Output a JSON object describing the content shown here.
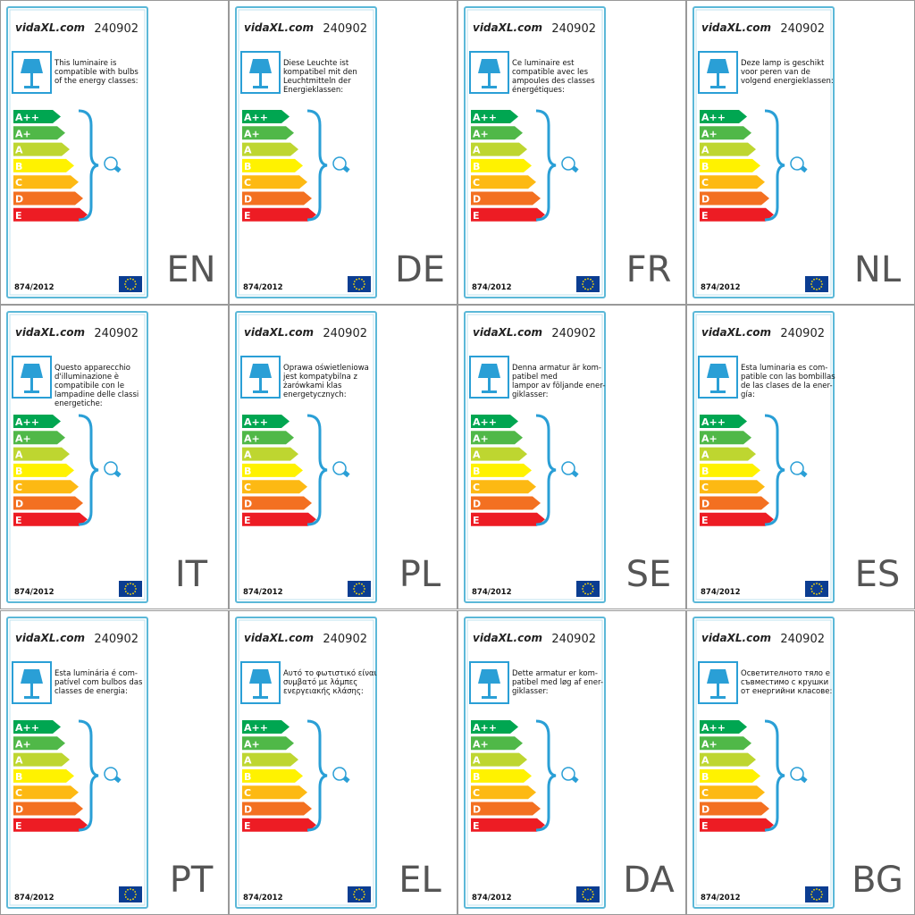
{
  "brand": "vidaXL.com",
  "product_code": "240902",
  "regulation": "874/2012",
  "energy_classes": [
    "A++",
    "A+",
    "A",
    "B",
    "C",
    "D",
    "E"
  ],
  "panels": [
    {
      "language": "EN",
      "text_lines": [
        "This luminaire is",
        "compatible with bulbs",
        "of the energy classes:"
      ]
    },
    {
      "language": "DE",
      "text_lines": [
        "Diese Leuchte ist",
        "kompatibel mit den",
        "Leuchtmitteln der",
        "Energieklassen:"
      ]
    },
    {
      "language": "FR",
      "text_lines": [
        "Ce luminaire est",
        "compatible avec les",
        "ampoules des classes",
        "énergétiques:"
      ]
    },
    {
      "language": "NL",
      "text_lines": [
        "Deze lamp is geschikt",
        "voor peren van de",
        "volgend energieklassen:"
      ]
    },
    {
      "language": "IT",
      "text_lines": [
        "Questo apparecchio",
        "d'illuminazione è",
        "compatibile con le",
        "lampadine delle classi",
        "energetiche:"
      ]
    },
    {
      "language": "PL",
      "text_lines": [
        "Oprawa oświetleniowa",
        "jest kompatybilna z",
        "żarówkami klas",
        "energetycznych:"
      ]
    },
    {
      "language": "SE",
      "text_lines": [
        "Denna armatur är kom-",
        "patibel med",
        "lampor av följande ener-",
        "giklasser:"
      ]
    },
    {
      "language": "ES",
      "text_lines": [
        "Esta luminaria es com-",
        "patible con las bombillas",
        "de las clases de la ener-",
        "gía:"
      ]
    },
    {
      "language": "PT",
      "text_lines": [
        "Esta luminária é com-",
        "patível com bulbos das",
        "classes de energia:"
      ]
    },
    {
      "language": "EL",
      "text_lines": [
        "Αυτό το φωτιστικό είναι",
        "συμβατό με λάμπες",
        "ενεργειακής κλάσης:"
      ]
    },
    {
      "language": "DA",
      "text_lines": [
        "Dette armatur er kom-",
        "patibel med løg af ener-",
        "giklasser:"
      ]
    },
    {
      "language": "BG",
      "text_lines": [
        "Осветителното тяло е",
        "съвместимо с крушки",
        "от енергийни класове:"
      ]
    }
  ]
}
